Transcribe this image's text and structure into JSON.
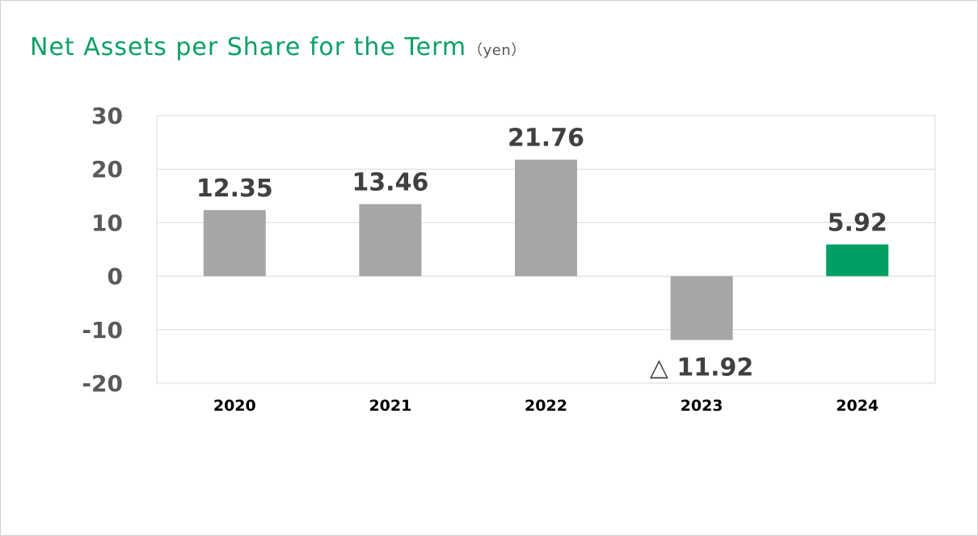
{
  "title": "Net Assets per Share for the Term",
  "unit": "（yen）",
  "colors": {
    "default_bar": "#a6a6a6",
    "highlight_bar": "#00a064",
    "title": "#0aa066"
  },
  "chart_data": {
    "type": "bar",
    "categories": [
      "2020",
      "2021",
      "2022",
      "2023",
      "2024"
    ],
    "values": [
      12.35,
      13.46,
      21.76,
      -11.92,
      5.92
    ],
    "value_labels": [
      "12.35",
      "13.46",
      "21.76",
      "△ 11.92",
      "5.92"
    ],
    "highlight_index": 4,
    "ylim": [
      -20,
      30
    ],
    "yticks": [
      "30",
      "20",
      "10",
      "0",
      "-10",
      "-20"
    ],
    "grid": true,
    "legend": "none"
  }
}
